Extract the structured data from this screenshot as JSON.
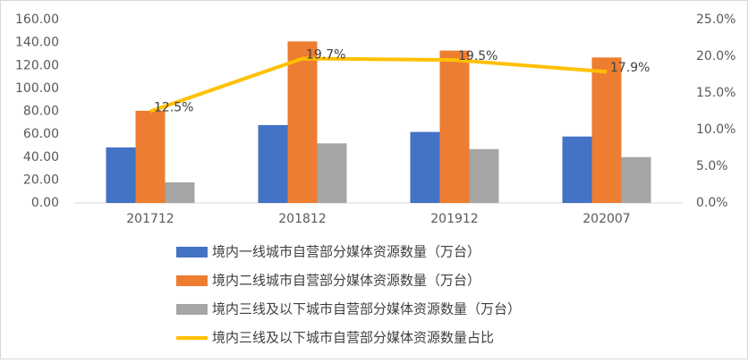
{
  "chart_data": {
    "type": "bar_line",
    "categories": [
      "201712",
      "201812",
      "201912",
      "202007"
    ],
    "series": [
      {
        "name": "境内一线城市自营部分媒体资源数量（万台）",
        "color": "#4472c4",
        "type": "bar",
        "values": [
          48.5,
          68,
          62,
          58
        ]
      },
      {
        "name": "境内二线城市自营部分媒体资源数量（万台）",
        "color": "#ed7d31",
        "type": "bar",
        "values": [
          80.5,
          141,
          133,
          127
        ]
      },
      {
        "name": "境内三线及以下城市自营部分媒体资源数量（万台）",
        "color": "#a5a5a5",
        "type": "bar",
        "values": [
          18,
          52,
          47,
          40
        ]
      },
      {
        "name": "境内三线及以下城市自营部分媒体资源数量占比",
        "color": "#ffc000",
        "type": "line",
        "axis": "y2",
        "values": [
          12.5,
          19.7,
          19.5,
          17.9
        ],
        "value_labels": [
          "12.5%",
          "19.7%",
          "19.5%",
          "17.9%"
        ]
      }
    ],
    "ylim": [
      0,
      160
    ],
    "yticks": [
      {
        "value": 0,
        "label": "0.00"
      },
      {
        "value": 20,
        "label": "20.00"
      },
      {
        "value": 40,
        "label": "40.00"
      },
      {
        "value": 60,
        "label": "60.00"
      },
      {
        "value": 80,
        "label": "80.00"
      },
      {
        "value": 100,
        "label": "100.00"
      },
      {
        "value": 120,
        "label": "120.00"
      },
      {
        "value": 140,
        "label": "140.00"
      },
      {
        "value": 160,
        "label": "160.00"
      }
    ],
    "y2lim": [
      0,
      25
    ],
    "y2ticks": [
      {
        "value": 0,
        "label": "0.0%"
      },
      {
        "value": 5,
        "label": "5.0%"
      },
      {
        "value": 10,
        "label": "10.0%"
      },
      {
        "value": 15,
        "label": "15.0%"
      },
      {
        "value": 20,
        "label": "20.0%"
      },
      {
        "value": 25,
        "label": "25.0%"
      }
    ],
    "grid": false
  }
}
